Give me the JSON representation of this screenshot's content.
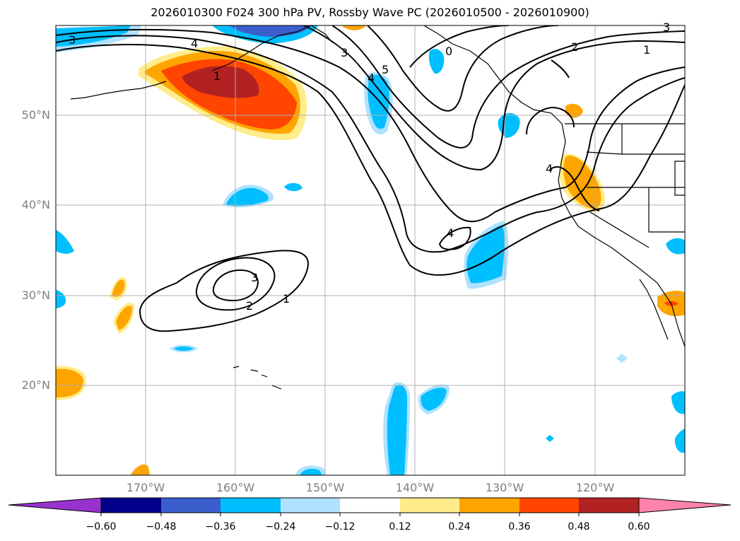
{
  "title": "2026010300 F024 300 hPa PV, Rossby Wave PC (2026010500 - 2026010900)",
  "latitude_labels": [
    "50°N",
    "40°N",
    "30°N",
    "20°N"
  ],
  "longitude_labels": [
    "170°W",
    "160°W",
    "150°W",
    "140°W",
    "130°W",
    "120°W"
  ],
  "contour_labels": [
    "3",
    "4",
    "1",
    "3",
    "4",
    "5",
    "0",
    "2",
    "1",
    "3",
    "4",
    "4",
    "3",
    "2",
    "1"
  ],
  "colorbar": {
    "ticks": [
      "−0.60",
      "−0.48",
      "−0.36",
      "−0.24",
      "−0.12",
      "0.12",
      "0.24",
      "0.36",
      "0.48",
      "0.60"
    ],
    "colors": [
      "#9932cc",
      "#00008b",
      "#3a5fcd",
      "#00bfff",
      "#b0e2ff",
      "#ffffff",
      "#ffec8b",
      "#ffa500",
      "#ff4500",
      "#b22222",
      "#ff82ab"
    ]
  },
  "colors": {
    "neg_light": "#b0e2ff",
    "neg_mid": "#00bfff",
    "neg_strong": "#3a5fcd",
    "pos_light": "#ffec8b",
    "pos_mid": "#ffa500",
    "pos_strong": "#ff4500",
    "pos_max": "#b22222"
  }
}
